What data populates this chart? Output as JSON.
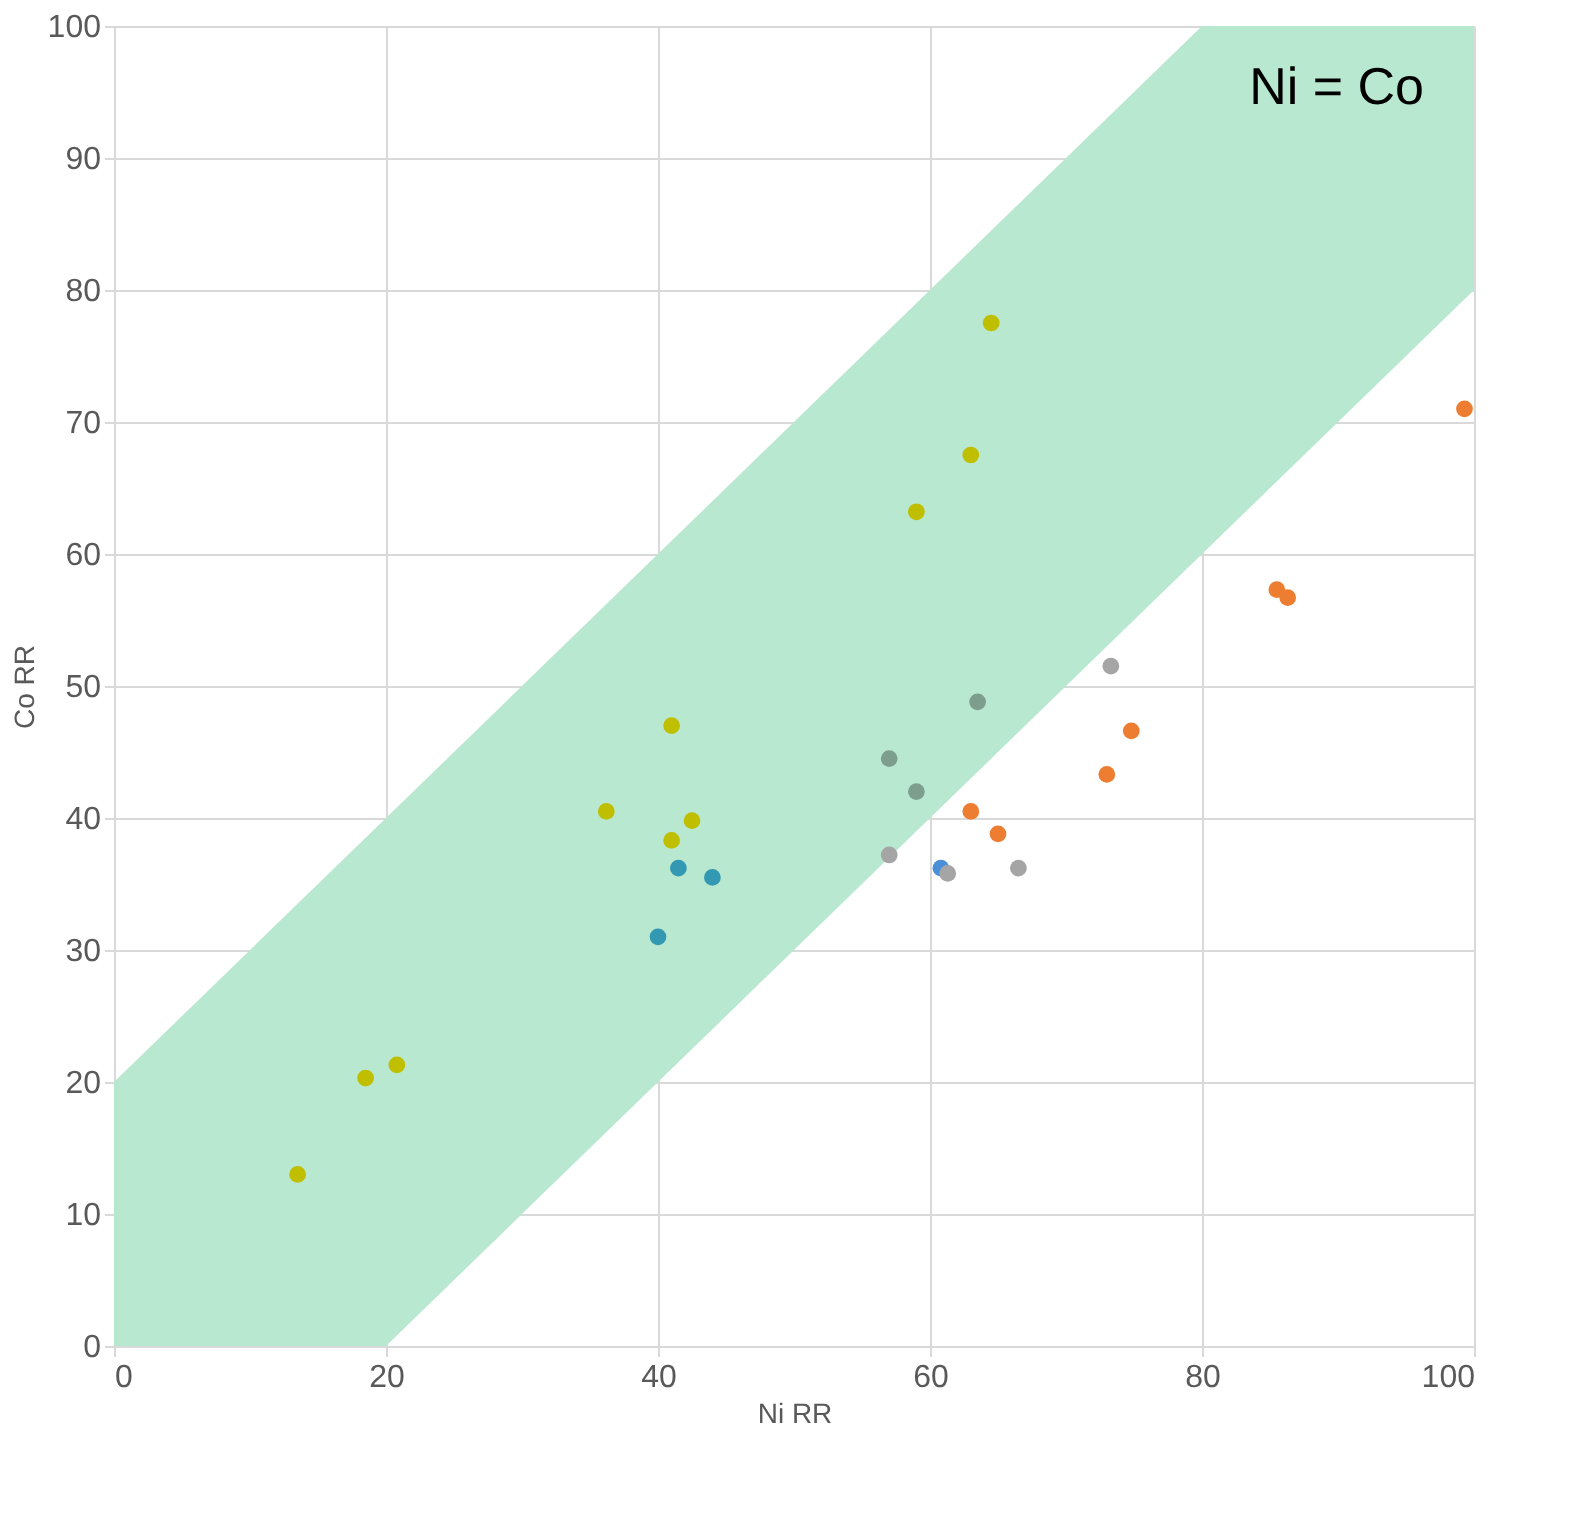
{
  "chart_data": {
    "type": "scatter",
    "xlabel": "Ni RR",
    "ylabel": "Co RR",
    "xlim": [
      0,
      100
    ],
    "ylim": [
      0,
      100
    ],
    "xticks": [
      0,
      20,
      40,
      60,
      80,
      100
    ],
    "yticks": [
      0,
      10,
      20,
      30,
      40,
      50,
      60,
      70,
      80,
      90,
      100
    ],
    "grid": true,
    "marker": "circle",
    "annotations": [
      "Ni = Co"
    ],
    "series": [
      {
        "type": "area",
        "color": "#b8e8d0",
        "x": [
          0,
          20,
          80,
          100
        ],
        "values": [
          null,
          null,
          null,
          null
        ],
        "lower": [
          0,
          0,
          60,
          80
        ],
        "upper": [
          20,
          40,
          100,
          100
        ]
      },
      {
        "color": "#bfbf00",
        "x": [
          13.5,
          18.5,
          20.8,
          36.2,
          41,
          41,
          42.5,
          59,
          63,
          64.5
        ],
        "values": [
          13,
          20.3,
          21.3,
          40.5,
          47,
          38.3,
          39.8,
          63.2,
          67.5,
          77.5
        ]
      },
      {
        "color": "#3399b3",
        "x": [
          40,
          41.5,
          44
        ],
        "values": [
          31,
          36.2,
          35.5
        ]
      },
      {
        "color": "#4a90d9",
        "x": [
          60.8
        ],
        "values": [
          36.2
        ]
      },
      {
        "color": "#7d9e8c",
        "x": [
          57,
          59,
          63.5
        ],
        "values": [
          44.5,
          42,
          48.8
        ]
      },
      {
        "color": "#a5a5a5",
        "x": [
          57,
          61.3,
          66.5,
          73.3
        ],
        "values": [
          37.2,
          35.8,
          36.2,
          51.5
        ]
      },
      {
        "color": "#ed7d31",
        "x": [
          63,
          65,
          73,
          74.8,
          85.5,
          86.3,
          99.3
        ],
        "values": [
          40.5,
          38.8,
          43.3,
          46.6,
          57.3,
          56.7,
          71
        ]
      }
    ]
  }
}
